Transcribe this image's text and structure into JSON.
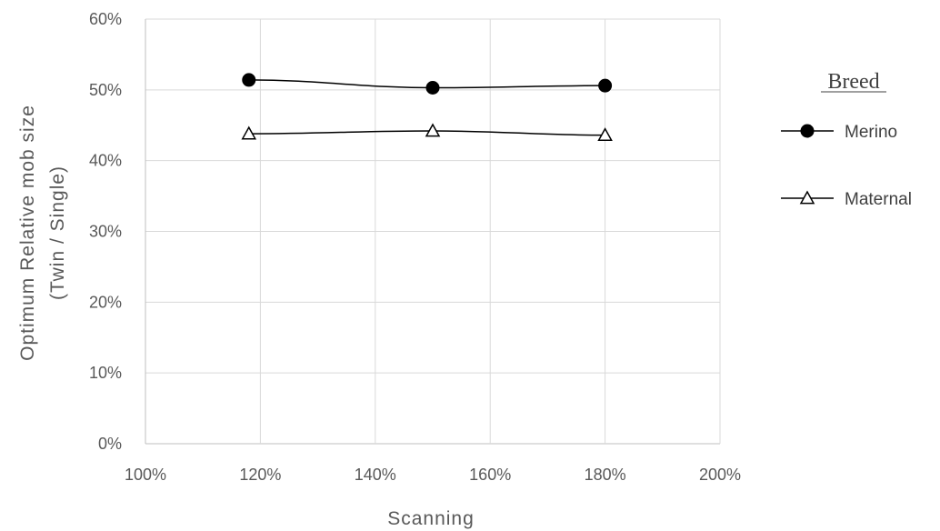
{
  "chart_data": {
    "type": "line",
    "xlabel": "Scanning",
    "ylabel_lines": [
      "Optimum Relative mob size",
      "(Twin / Single)"
    ],
    "xlim": [
      1.0,
      2.0
    ],
    "ylim": [
      0,
      0.6
    ],
    "x_ticks": [
      {
        "value": 1.0,
        "label": "100%"
      },
      {
        "value": 1.2,
        "label": "120%"
      },
      {
        "value": 1.4,
        "label": "140%"
      },
      {
        "value": 1.6,
        "label": "160%"
      },
      {
        "value": 1.8,
        "label": "180%"
      },
      {
        "value": 2.0,
        "label": "200%"
      }
    ],
    "y_ticks": [
      {
        "value": 0.0,
        "label": "0%"
      },
      {
        "value": 0.1,
        "label": "10%"
      },
      {
        "value": 0.2,
        "label": "20%"
      },
      {
        "value": 0.3,
        "label": "30%"
      },
      {
        "value": 0.4,
        "label": "40%"
      },
      {
        "value": 0.5,
        "label": "50%"
      },
      {
        "value": 0.6,
        "label": "60%"
      }
    ],
    "grid": true,
    "legend_title": "Breed",
    "legend_position": "right",
    "series": [
      {
        "name": "Merino",
        "marker": "circle",
        "color": "#000000",
        "x": [
          1.18,
          1.5,
          1.8
        ],
        "y": [
          0.514,
          0.503,
          0.506
        ]
      },
      {
        "name": "Maternal",
        "marker": "triangle",
        "color": "#000000",
        "x": [
          1.18,
          1.5,
          1.8
        ],
        "y": [
          0.438,
          0.442,
          0.436
        ]
      }
    ],
    "colors": {
      "grid": "#d9d9d9",
      "axis": "#bfbfbf",
      "text": "#595959"
    }
  }
}
